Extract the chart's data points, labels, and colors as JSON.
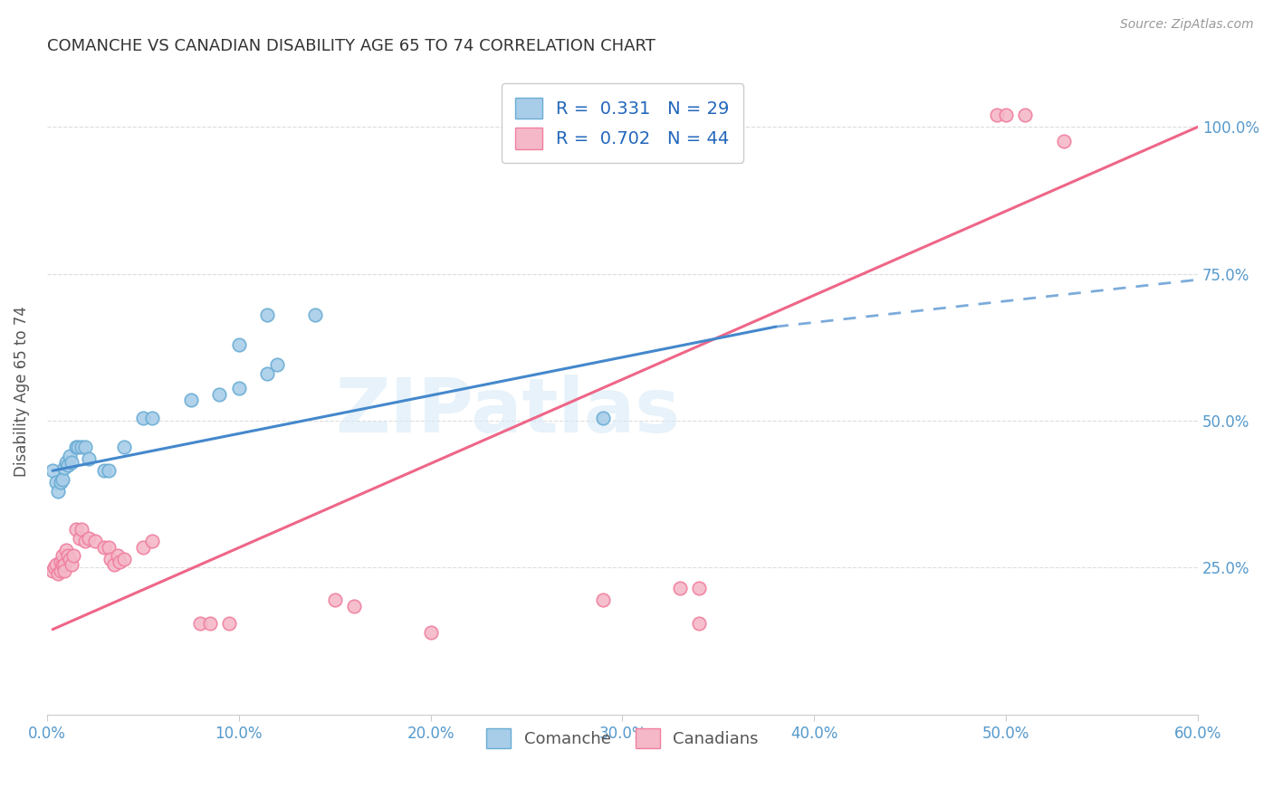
{
  "title": "COMANCHE VS CANADIAN DISABILITY AGE 65 TO 74 CORRELATION CHART",
  "source": "Source: ZipAtlas.com",
  "ylabel": "Disability Age 65 to 74",
  "xlim": [
    0.0,
    0.6
  ],
  "ylim": [
    0.0,
    1.1
  ],
  "xtick_labels": [
    "0.0%",
    "10.0%",
    "20.0%",
    "30.0%",
    "40.0%",
    "50.0%",
    "60.0%"
  ],
  "xtick_vals": [
    0.0,
    0.1,
    0.2,
    0.3,
    0.4,
    0.5,
    0.6
  ],
  "ytick_labels": [
    "25.0%",
    "50.0%",
    "75.0%",
    "100.0%"
  ],
  "ytick_vals": [
    0.25,
    0.5,
    0.75,
    1.0
  ],
  "watermark": "ZIPatlas",
  "comanche_color": "#a8cde8",
  "canadians_color": "#f4b8c8",
  "comanche_edge_color": "#6aadd5",
  "canadians_edge_color": "#f080a0",
  "comanche_line_color": "#4488cc",
  "canadians_line_color": "#ee6688",
  "comanche_scatter": [
    [
      0.003,
      0.415
    ],
    [
      0.005,
      0.395
    ],
    [
      0.006,
      0.38
    ],
    [
      0.007,
      0.395
    ],
    [
      0.008,
      0.4
    ],
    [
      0.009,
      0.42
    ],
    [
      0.01,
      0.43
    ],
    [
      0.011,
      0.425
    ],
    [
      0.012,
      0.44
    ],
    [
      0.013,
      0.43
    ],
    [
      0.015,
      0.455
    ],
    [
      0.016,
      0.455
    ],
    [
      0.018,
      0.455
    ],
    [
      0.02,
      0.455
    ],
    [
      0.022,
      0.435
    ],
    [
      0.03,
      0.415
    ],
    [
      0.032,
      0.415
    ],
    [
      0.04,
      0.455
    ],
    [
      0.05,
      0.505
    ],
    [
      0.055,
      0.505
    ],
    [
      0.075,
      0.535
    ],
    [
      0.09,
      0.545
    ],
    [
      0.1,
      0.555
    ],
    [
      0.1,
      0.63
    ],
    [
      0.115,
      0.58
    ],
    [
      0.12,
      0.595
    ],
    [
      0.115,
      0.68
    ],
    [
      0.14,
      0.68
    ],
    [
      0.29,
      0.505
    ]
  ],
  "canadians_scatter": [
    [
      0.003,
      0.245
    ],
    [
      0.004,
      0.25
    ],
    [
      0.005,
      0.255
    ],
    [
      0.006,
      0.24
    ],
    [
      0.007,
      0.26
    ],
    [
      0.007,
      0.245
    ],
    [
      0.008,
      0.255
    ],
    [
      0.008,
      0.27
    ],
    [
      0.009,
      0.255
    ],
    [
      0.009,
      0.245
    ],
    [
      0.01,
      0.28
    ],
    [
      0.011,
      0.27
    ],
    [
      0.012,
      0.265
    ],
    [
      0.013,
      0.255
    ],
    [
      0.014,
      0.27
    ],
    [
      0.015,
      0.315
    ],
    [
      0.017,
      0.3
    ],
    [
      0.018,
      0.315
    ],
    [
      0.02,
      0.295
    ],
    [
      0.022,
      0.3
    ],
    [
      0.025,
      0.295
    ],
    [
      0.03,
      0.285
    ],
    [
      0.032,
      0.285
    ],
    [
      0.033,
      0.265
    ],
    [
      0.035,
      0.255
    ],
    [
      0.037,
      0.27
    ],
    [
      0.038,
      0.26
    ],
    [
      0.04,
      0.265
    ],
    [
      0.05,
      0.285
    ],
    [
      0.055,
      0.295
    ],
    [
      0.08,
      0.155
    ],
    [
      0.085,
      0.155
    ],
    [
      0.095,
      0.155
    ],
    [
      0.15,
      0.195
    ],
    [
      0.16,
      0.185
    ],
    [
      0.2,
      0.14
    ],
    [
      0.29,
      0.195
    ],
    [
      0.33,
      0.215
    ],
    [
      0.34,
      0.215
    ],
    [
      0.34,
      0.155
    ],
    [
      0.495,
      1.02
    ],
    [
      0.5,
      1.02
    ],
    [
      0.51,
      1.02
    ],
    [
      0.53,
      0.975
    ]
  ],
  "comanche_trendline_solid": [
    [
      0.003,
      0.415
    ],
    [
      0.38,
      0.66
    ]
  ],
  "comanche_trendline_dash": [
    [
      0.38,
      0.66
    ],
    [
      0.6,
      0.74
    ]
  ],
  "canadians_trendline": [
    [
      0.003,
      0.145
    ],
    [
      0.6,
      1.0
    ]
  ],
  "bg_color": "#ffffff",
  "grid_color": "#dddddd"
}
